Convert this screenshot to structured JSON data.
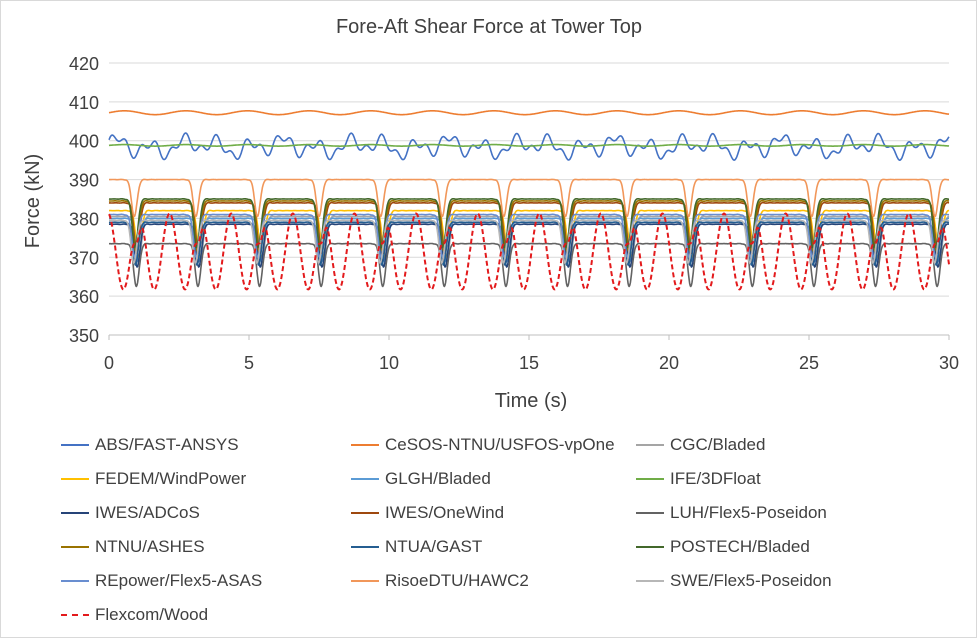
{
  "chart_data": {
    "type": "line",
    "title": "Fore-Aft Shear Force at Tower Top",
    "xlabel": "Time (s)",
    "ylabel": "Force (kN)",
    "xlim": [
      0,
      30
    ],
    "ylim": [
      350,
      420
    ],
    "xticks": [
      0,
      5,
      10,
      15,
      20,
      25,
      30
    ],
    "yticks": [
      350,
      360,
      370,
      380,
      390,
      400,
      410,
      420
    ],
    "grid": "horizontal",
    "legend_position": "bottom",
    "period_s": 2.2,
    "series": [
      {
        "name": "ABS/FAST-ANSYS",
        "color": "#4472c4",
        "style": "noisy",
        "mean": 398.5,
        "amplitude": 3.0,
        "dashed": false
      },
      {
        "name": "CeSOS-NTNU/USFOS-vpOne",
        "color": "#ed7d31",
        "style": "ripple",
        "mean": 407.2,
        "amplitude": 0.5,
        "dashed": false
      },
      {
        "name": "CGC/Bladed",
        "color": "#a5a5a5",
        "style": "dip",
        "plateau": 380.5,
        "min": 369.5,
        "dashed": false
      },
      {
        "name": "FEDEM/WindPower",
        "color": "#ffc000",
        "style": "dip",
        "plateau": 382.0,
        "min": 370.0,
        "dashed": false
      },
      {
        "name": "GLGH/Bladed",
        "color": "#5b9bd5",
        "style": "dip",
        "plateau": 380.0,
        "min": 369.0,
        "dashed": false
      },
      {
        "name": "IFE/3DFloat",
        "color": "#70ad47",
        "style": "ripple",
        "mean": 398.8,
        "amplitude": 0.2,
        "dashed": false
      },
      {
        "name": "IWES/ADCoS",
        "color": "#264478",
        "style": "dip",
        "plateau": 378.5,
        "min": 367.5,
        "dashed": false
      },
      {
        "name": "IWES/OneWind",
        "color": "#9e480e",
        "style": "dip",
        "plateau": 384.0,
        "min": 371.0,
        "dashed": false
      },
      {
        "name": "LUH/Flex5-Poseidon",
        "color": "#636363",
        "style": "dip",
        "plateau": 373.5,
        "min": 362.5,
        "dashed": false
      },
      {
        "name": "NTNU/ASHES",
        "color": "#997300",
        "style": "dip",
        "plateau": 384.5,
        "min": 371.5,
        "dashed": false
      },
      {
        "name": "NTUA/GAST",
        "color": "#255e91",
        "style": "dip",
        "plateau": 379.0,
        "min": 368.0,
        "dashed": false
      },
      {
        "name": "POSTECH/Bladed",
        "color": "#43682b",
        "style": "dip",
        "plateau": 385.0,
        "min": 372.5,
        "dashed": false
      },
      {
        "name": "REpower/Flex5-ASAS",
        "color": "#698ed0",
        "style": "dip",
        "plateau": 381.0,
        "min": 370.0,
        "dashed": false
      },
      {
        "name": "RisoeDTU/HAWC2",
        "color": "#f1975a",
        "style": "dip",
        "plateau": 390.0,
        "min": 380.5,
        "dashed": false
      },
      {
        "name": "SWE/Flex5-Poseidon",
        "color": "#b7b7b7",
        "style": "dip",
        "plateau": 379.5,
        "min": 368.5,
        "dashed": false
      },
      {
        "name": "Flexcom/Wood",
        "color": "#e31a1c",
        "style": "wave",
        "plateau": 372.0,
        "min": 360.0,
        "max": 383.0,
        "dashed": true
      }
    ]
  }
}
